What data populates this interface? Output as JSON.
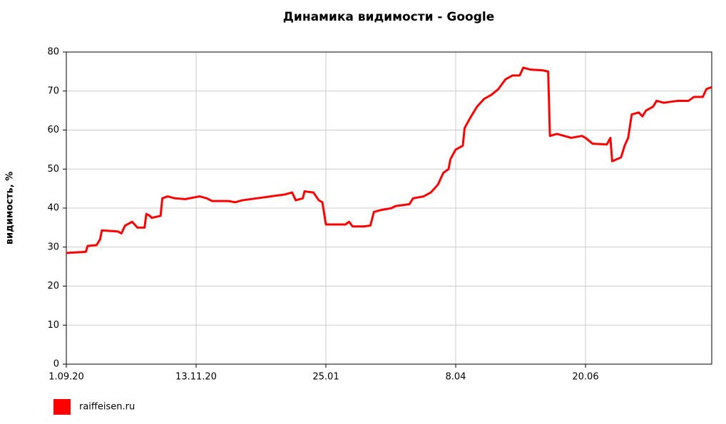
{
  "chart_data": {
    "type": "line",
    "title": "Динамика видимости - Google",
    "y_label": "видимость, %",
    "xlim": [
      0,
      363
    ],
    "xticks": [
      {
        "value": 0,
        "label": "1.09.20"
      },
      {
        "value": 73,
        "label": "13.11.20"
      },
      {
        "value": 146,
        "label": "25.01"
      },
      {
        "value": 219,
        "label": "8.04"
      },
      {
        "value": 292,
        "label": "20.06"
      }
    ],
    "ylim": [
      0,
      80
    ],
    "yticks": [
      0,
      10,
      20,
      30,
      40,
      50,
      60,
      70,
      80
    ],
    "grid": true,
    "legend": "bottom-left",
    "x": [
      0,
      11,
      12,
      17,
      19,
      20,
      29,
      31,
      33,
      37,
      40,
      44,
      45,
      47,
      48,
      53,
      54,
      57,
      61,
      67,
      75,
      79,
      82,
      91,
      95,
      99,
      107,
      115,
      123,
      127,
      129,
      133,
      134,
      139,
      142,
      144,
      146,
      157,
      159,
      161,
      167,
      171,
      173,
      177,
      183,
      185,
      193,
      195,
      201,
      205,
      209,
      212,
      215,
      216,
      219,
      223,
      224,
      227,
      231,
      235,
      239,
      243,
      247,
      251,
      255,
      257,
      261,
      268,
      271,
      272,
      276,
      280,
      284,
      290,
      292,
      296,
      304,
      306,
      307,
      312,
      314,
      316,
      318,
      322,
      324,
      326,
      330,
      332,
      336,
      344,
      350,
      353,
      358,
      360,
      363
    ],
    "series": [
      {
        "name": "raiffeisen.ru",
        "color": "#ff0000",
        "values": [
          28.5,
          28.8,
          30.3,
          30.5,
          32,
          34.3,
          34,
          33.5,
          35.5,
          36.5,
          35,
          35,
          38.5,
          38,
          37.5,
          38,
          42.5,
          43,
          42.5,
          42.3,
          43,
          42.5,
          41.8,
          41.8,
          41.5,
          42,
          42.5,
          43,
          43.5,
          44,
          42,
          42.5,
          44.3,
          44,
          42,
          41.5,
          35.8,
          35.8,
          36.5,
          35.3,
          35.3,
          35.5,
          39,
          39.5,
          40,
          40.5,
          41,
          42.5,
          43,
          44,
          46,
          49,
          50,
          52.5,
          55,
          56,
          60.5,
          63,
          66,
          68,
          69,
          70.5,
          73,
          74,
          74,
          76,
          75.5,
          75.3,
          75,
          58.5,
          59,
          58.5,
          58,
          58.5,
          58,
          56.5,
          56.3,
          58,
          52,
          53,
          56,
          58,
          64,
          64.5,
          63.5,
          65,
          66,
          67.5,
          67,
          67.5,
          67.5,
          68.5,
          68.5,
          70.5,
          71
        ]
      }
    ]
  }
}
